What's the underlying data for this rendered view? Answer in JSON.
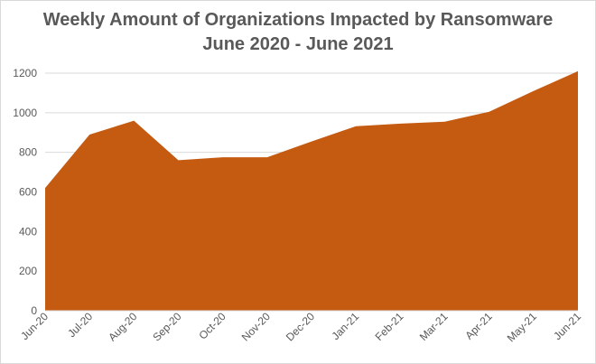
{
  "chart_data": {
    "type": "area",
    "title": "Weekly Amount of Organizations Impacted by Ransomware",
    "subtitle": "June 2020 - June 2021",
    "xlabel": "",
    "ylabel": "",
    "categories": [
      "Jun-20",
      "Jul-20",
      "Aug-20",
      "Sep-20",
      "Oct-20",
      "Nov-20",
      "Dec-20",
      "Jan-21",
      "Feb-21",
      "Mar-21",
      "Apr-21",
      "May-21",
      "Jun-21"
    ],
    "series": [
      {
        "values": [
          620,
          890,
          960,
          760,
          775,
          775,
          855,
          932,
          945,
          955,
          1005,
          1110,
          1210
        ],
        "color": "#c55a11"
      }
    ],
    "ylim": [
      0,
      1200
    ],
    "yticks": [
      0,
      200,
      400,
      600,
      800,
      1000,
      1200
    ],
    "grid": true,
    "legend": "none"
  }
}
